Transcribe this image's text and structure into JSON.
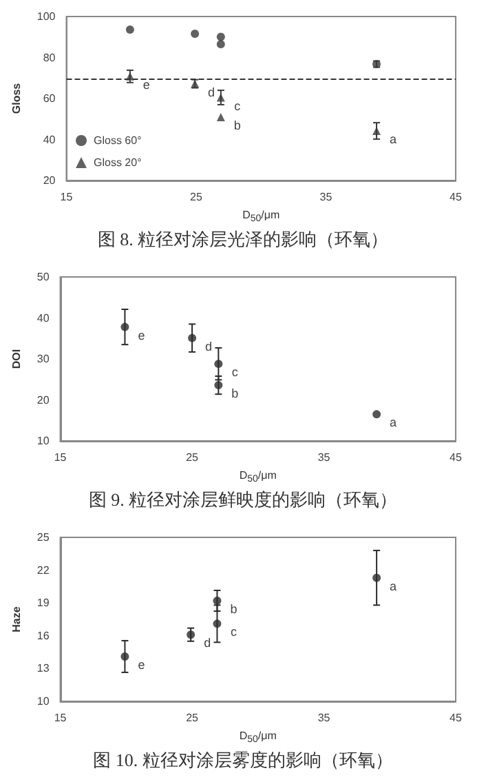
{
  "chart_data": [
    {
      "type": "scatter",
      "title": "图 8. 粒径对涂层光泽的影响（环氧）",
      "xlabel": "D$_{50}$/μm",
      "ylabel": "Gloss",
      "xlim": [
        15,
        45
      ],
      "xticks": [
        15,
        25,
        35,
        45
      ],
      "ylim": [
        20,
        100
      ],
      "yticks": [
        20,
        40,
        60,
        80,
        100
      ],
      "legend": "bottom left",
      "grid": false,
      "series": [
        {
          "name": "Gloss 60°",
          "color": "#3a3a3a",
          "marker": "circle",
          "x": [
            19.9,
            24.9,
            26.9,
            26.9,
            38.9
          ],
          "values": [
            93.6,
            91.6,
            90.1,
            86.5,
            76.8
          ],
          "errors": [
            null,
            null,
            null,
            null,
            1.5
          ]
        },
        {
          "name": "Gloss 20°",
          "color": "#3a3a3a",
          "marker": "triangle",
          "x": [
            19.9,
            24.9,
            26.9,
            26.9,
            38.9
          ],
          "values": [
            70.8,
            67.2,
            60.5,
            50.9,
            44.2
          ],
          "errors": [
            3,
            2,
            3.5,
            null,
            4
          ]
        }
      ],
      "ref_lines": [
        {
          "axis": "y",
          "value": 69.3,
          "line_style": "dashed",
          "color": "#333333"
        }
      ],
      "annotations": [
        {
          "text": "e",
          "x": 19.9,
          "y": 70.8
        },
        {
          "text": "d",
          "x": 24.9,
          "y": 67.2
        },
        {
          "text": "c",
          "x": 26.9,
          "y": 60.5
        },
        {
          "text": "b",
          "x": 26.9,
          "y": 50.9
        },
        {
          "text": "a",
          "x": 38.9,
          "y": 44.2
        }
      ]
    },
    {
      "type": "scatter",
      "title": "图 9. 粒径对涂层鲜映度的影响（环氧）",
      "xlabel": "D$_{50}$/μm",
      "ylabel": "DOI",
      "xlim": [
        15,
        45
      ],
      "xticks": [
        15,
        25,
        35,
        45
      ],
      "ylim": [
        10,
        50
      ],
      "yticks": [
        10,
        20,
        30,
        40,
        50
      ],
      "grid": false,
      "series": [
        {
          "color": "#2a2a2a",
          "marker": "circle",
          "x": [
            19.9,
            25.0,
            27.0,
            27.0,
            39.0
          ],
          "values": [
            37.8,
            35.1,
            28.8,
            23.6,
            16.5
          ],
          "errors": [
            4.3,
            3.4,
            3.9,
            2.2,
            null
          ]
        }
      ],
      "annotations": [
        {
          "text": "e",
          "x": 19.9,
          "y": 37.8
        },
        {
          "text": "d",
          "x": 25.0,
          "y": 35.1
        },
        {
          "text": "c",
          "x": 27.0,
          "y": 28.8
        },
        {
          "text": "b",
          "x": 27.0,
          "y": 23.6
        },
        {
          "text": "a",
          "x": 39.0,
          "y": 16.5
        }
      ]
    },
    {
      "type": "scatter",
      "title": "图 10. 粒径对涂层雾度的影响（环氧）",
      "xlabel": "D$_{50}$/μm",
      "ylabel": "Haze",
      "xlim": [
        15,
        45
      ],
      "xticks": [
        15,
        25,
        35,
        45
      ],
      "ylim": [
        10,
        25
      ],
      "yticks": [
        10,
        13,
        16,
        19,
        22,
        25
      ],
      "grid": false,
      "series": [
        {
          "color": "#2a2a2a",
          "marker": "circle",
          "x": [
            19.9,
            24.9,
            26.9,
            26.9,
            39.0
          ],
          "values": [
            14.1,
            16.1,
            19.2,
            17.1,
            21.3
          ],
          "errors": [
            1.45,
            0.6,
            0.95,
            1.7,
            2.5
          ]
        }
      ],
      "annotations": [
        {
          "text": "e",
          "x": 19.9,
          "y": 14.1
        },
        {
          "text": "d",
          "x": 24.9,
          "y": 16.1
        },
        {
          "text": "b",
          "x": 26.9,
          "y": 19.2
        },
        {
          "text": "c",
          "x": 26.9,
          "y": 17.1
        },
        {
          "text": "a",
          "x": 39.0,
          "y": 21.3
        }
      ]
    }
  ]
}
